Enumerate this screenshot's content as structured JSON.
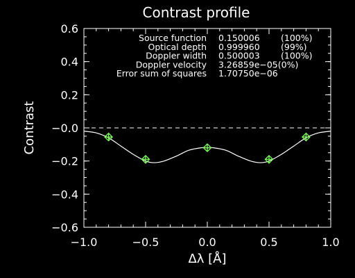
{
  "chart_data": {
    "type": "line",
    "title": "Contrast profile",
    "xlabel": "Δλ [Å]",
    "ylabel": "Contrast",
    "xlim": [
      -1.0,
      1.0
    ],
    "ylim": [
      -0.6,
      0.6
    ],
    "x_ticks": [
      -1.0,
      -0.5,
      0.0,
      0.5,
      1.0
    ],
    "x_tick_labels": [
      "−1.0",
      "−0.5",
      "0.0",
      "0.5",
      "1.0"
    ],
    "y_ticks": [
      -0.6,
      -0.4,
      -0.2,
      0.0,
      0.2,
      0.4,
      0.6
    ],
    "y_tick_labels": [
      "−0.6",
      "−0.4",
      "−0.2",
      "−0.0",
      "0.2",
      "0.4",
      "0.6"
    ],
    "grid": false,
    "reference_line_y": 0.0,
    "series": [
      {
        "style": "markers-diamond-cross",
        "color": "#7cff5a",
        "x": [
          -0.8,
          -0.5,
          0.0,
          0.5,
          0.8
        ],
        "y": [
          -0.055,
          -0.19,
          -0.12,
          -0.19,
          -0.055
        ]
      },
      {
        "style": "line",
        "color": "#ffffff",
        "x": [
          -1.0,
          -0.9,
          -0.8,
          -0.7,
          -0.6,
          -0.5,
          -0.43,
          -0.35,
          -0.25,
          -0.15,
          -0.05,
          0.0,
          0.05,
          0.15,
          0.25,
          0.35,
          0.43,
          0.5,
          0.6,
          0.7,
          0.8,
          0.9,
          1.0
        ],
        "y": [
          -0.02,
          -0.03,
          -0.06,
          -0.11,
          -0.16,
          -0.2,
          -0.21,
          -0.2,
          -0.17,
          -0.135,
          -0.12,
          -0.12,
          -0.12,
          -0.135,
          -0.17,
          -0.2,
          -0.21,
          -0.2,
          -0.16,
          -0.11,
          -0.06,
          -0.03,
          -0.02
        ]
      }
    ],
    "annotations": [
      {
        "label": "Source function",
        "value": "0.150006",
        "pct": "(100%)"
      },
      {
        "label": "Optical depth",
        "value": "0.999960",
        "pct": "(99%)"
      },
      {
        "label": "Doppler width",
        "value": "0.500003",
        "pct": "(100%)"
      },
      {
        "label": "Doppler velocity",
        "value": "3.26859e−05(0%)",
        "pct": ""
      },
      {
        "label": "Error sum of squares",
        "value": "1.70750e−06",
        "pct": ""
      }
    ]
  }
}
